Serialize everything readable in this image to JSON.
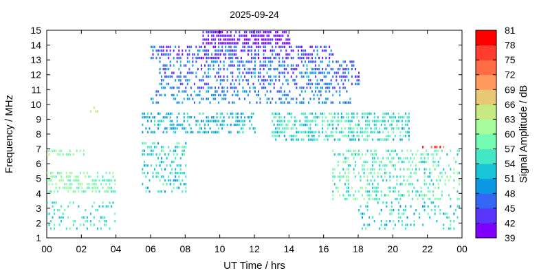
{
  "chart_data": {
    "type": "heatmap",
    "title": "2025-09-24",
    "xlabel": "UT Time / hrs",
    "ylabel": "Frequency / MHz",
    "colorbar_label": "Signal Amplitude / dB",
    "xlim": [
      0,
      24
    ],
    "ylim": [
      1,
      15
    ],
    "x_ticks": [
      "00",
      "02",
      "04",
      "06",
      "08",
      "10",
      "12",
      "14",
      "16",
      "18",
      "20",
      "22",
      "00"
    ],
    "y_ticks": [
      "1",
      "2",
      "3",
      "4",
      "5",
      "6",
      "7",
      "8",
      "9",
      "10",
      "11",
      "12",
      "13",
      "14",
      "15"
    ],
    "colorbar": {
      "range": [
        39,
        81
      ],
      "ticks": [
        "39",
        "42",
        "45",
        "48",
        "51",
        "54",
        "57",
        "60",
        "63",
        "66",
        "69",
        "72",
        "75",
        "78",
        "81"
      ],
      "colors": [
        "#8000ff",
        "#5a35fb",
        "#3366f2",
        "#0d98e6",
        "#19c4d7",
        "#45e8c4",
        "#73fbb1",
        "#a6fb9a",
        "#c6e982",
        "#e8c873",
        "#ff9a5c",
        "#ff6b45",
        "#ff3c2e",
        "#ff0000"
      ]
    },
    "regions": [
      {
        "t": [
          9.0,
          14.0
        ],
        "f": [
          14.0,
          15.0
        ],
        "amp": [
          40,
          44
        ],
        "density": 0.7
      },
      {
        "t": [
          6.0,
          16.5
        ],
        "f": [
          13.0,
          14.0
        ],
        "amp": [
          40,
          50
        ],
        "density": 0.55
      },
      {
        "t": [
          6.5,
          18.0
        ],
        "f": [
          11.0,
          13.0
        ],
        "amp": [
          42,
          52
        ],
        "density": 0.45
      },
      {
        "t": [
          6.0,
          17.5
        ],
        "f": [
          10.0,
          11.0
        ],
        "amp": [
          45,
          52
        ],
        "density": 0.3
      },
      {
        "t": [
          5.5,
          12.0
        ],
        "f": [
          8.0,
          9.5
        ],
        "amp": [
          48,
          56
        ],
        "density": 0.45
      },
      {
        "t": [
          13.0,
          21.0
        ],
        "f": [
          7.5,
          9.3
        ],
        "amp": [
          50,
          60
        ],
        "density": 0.5
      },
      {
        "t": [
          5.5,
          8.0
        ],
        "f": [
          4.0,
          7.5
        ],
        "amp": [
          50,
          58
        ],
        "density": 0.3
      },
      {
        "t": [
          16.5,
          23.9
        ],
        "f": [
          3.5,
          7.0
        ],
        "amp": [
          52,
          62
        ],
        "density": 0.35
      },
      {
        "t": [
          0.0,
          4.0
        ],
        "f": [
          4.0,
          5.5
        ],
        "amp": [
          56,
          62
        ],
        "density": 0.5
      },
      {
        "t": [
          0.0,
          4.0
        ],
        "f": [
          1.5,
          3.5
        ],
        "amp": [
          52,
          58
        ],
        "density": 0.25
      },
      {
        "t": [
          18.0,
          23.9
        ],
        "f": [
          1.5,
          3.5
        ],
        "amp": [
          50,
          58
        ],
        "density": 0.2
      },
      {
        "t": [
          0.0,
          2.2
        ],
        "f": [
          6.5,
          6.9
        ],
        "amp": [
          56,
          64
        ],
        "density": 0.45
      },
      {
        "t": [
          21.5,
          23.0
        ],
        "f": [
          7.0,
          7.2
        ],
        "amp": [
          70,
          81
        ],
        "density": 0.5
      },
      {
        "t": [
          2.4,
          3.2
        ],
        "f": [
          9.4,
          9.8
        ],
        "amp": [
          60,
          66
        ],
        "density": 0.4
      }
    ]
  }
}
